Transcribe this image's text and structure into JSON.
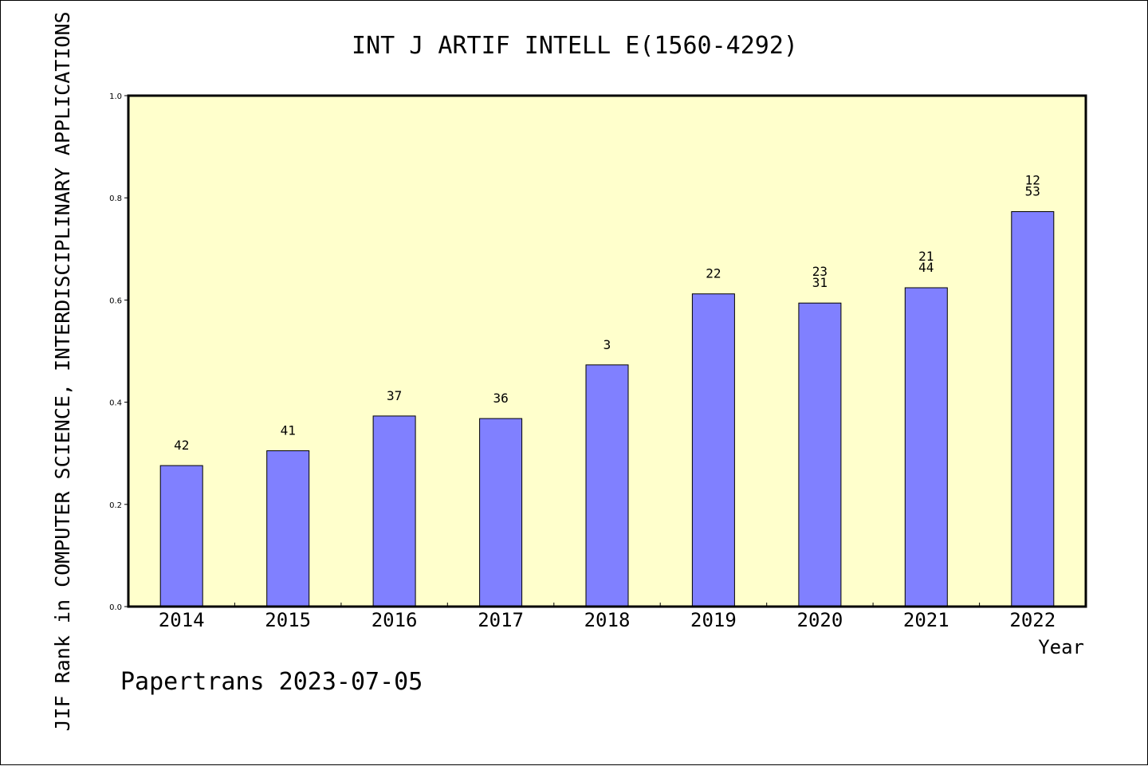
{
  "chart_data": {
    "type": "bar",
    "title": "INT J ARTIF INTELL E(1560-4292)",
    "ylabel": "JIF Rank in COMPUTER SCIENCE, INTERDISCIPLINARY APPLICATIONS",
    "xlabel": "Year",
    "ylim": [
      0,
      1.0
    ],
    "yticks": [
      "0.0",
      "0.2",
      "0.4",
      "0.6",
      "0.8",
      "1.0"
    ],
    "categories": [
      "2014",
      "2015",
      "2016",
      "2017",
      "2018",
      "2019",
      "2020",
      "2021",
      "2022"
    ],
    "values": [
      0.276,
      0.305,
      0.373,
      0.368,
      0.473,
      0.612,
      0.594,
      0.624,
      0.773
    ],
    "bar_labels": [
      [
        "42"
      ],
      [
        "41"
      ],
      [
        "37"
      ],
      [
        "36"
      ],
      [
        "3"
      ],
      [
        "22"
      ],
      [
        "23",
        "31"
      ],
      [
        "21",
        "44"
      ],
      [
        "12",
        "53"
      ]
    ],
    "grid": false,
    "colors": {
      "plot_background": "#ffffcc",
      "bar_fill": "#8080ff",
      "bar_stroke": "#000000"
    }
  },
  "footer": {
    "text": "Papertrans 2023-07-05"
  }
}
